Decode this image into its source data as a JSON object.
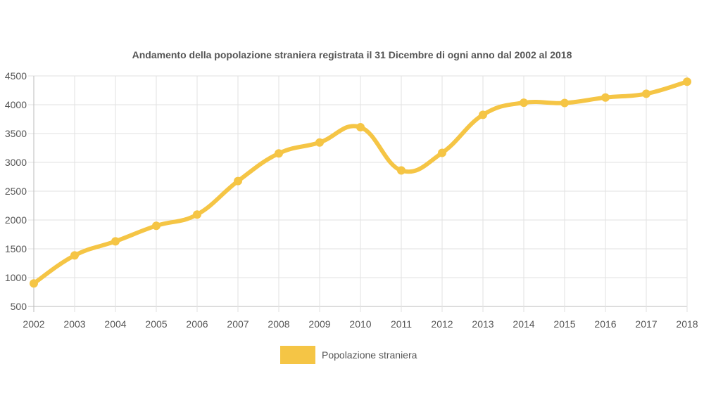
{
  "chart_data": {
    "type": "line",
    "title": "Andamento della popolazione straniera registrata il 31 Dicembre di ogni anno dal 2002 al 2018",
    "xlabel": "",
    "ylabel": "",
    "categories": [
      "2002",
      "2003",
      "2004",
      "2005",
      "2006",
      "2007",
      "2008",
      "2009",
      "2010",
      "2011",
      "2012",
      "2013",
      "2014",
      "2015",
      "2016",
      "2017",
      "2018"
    ],
    "series": [
      {
        "name": "Popolazione straniera",
        "color": "#f5c545",
        "values": [
          900,
          1385,
          1630,
          1900,
          2095,
          2675,
          3155,
          3345,
          3610,
          2860,
          3165,
          3825,
          4035,
          4030,
          4125,
          4190,
          4400
        ]
      }
    ],
    "ylim": [
      500,
      4500
    ],
    "yticks": [
      "500",
      "1000",
      "1500",
      "2000",
      "2500",
      "3000",
      "3500",
      "4000",
      "4500"
    ],
    "grid": true,
    "legend_position": "bottom"
  }
}
